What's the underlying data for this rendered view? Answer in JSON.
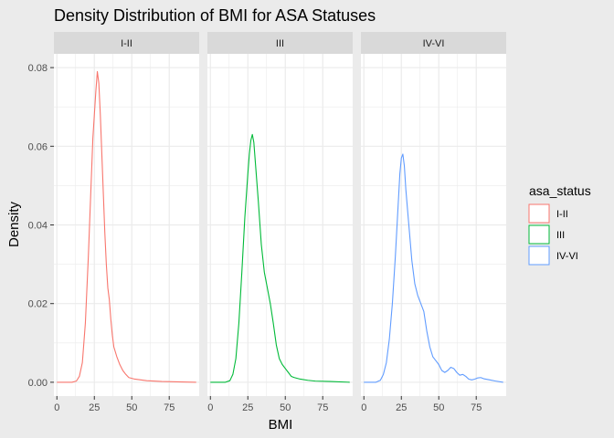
{
  "chart_data": {
    "type": "line",
    "title": "Density Distribution of BMI for ASA Statuses",
    "xlabel": "BMI",
    "ylabel": "Density",
    "xlim": [
      -2,
      95
    ],
    "ylim": [
      -0.0035,
      0.0835
    ],
    "x_ticks": [
      0,
      25,
      50,
      75
    ],
    "y_ticks": [
      0.0,
      0.02,
      0.04,
      0.06,
      0.08
    ],
    "y_tick_labels": [
      "0.00",
      "0.02",
      "0.04",
      "0.06",
      "0.08"
    ],
    "grid": true,
    "legend": {
      "title": "asa_status",
      "placement": "right"
    },
    "facets": [
      "I-II",
      "III",
      "IV-VI"
    ],
    "series": [
      {
        "name": "I-II",
        "color": "#F8766D",
        "points": [
          [
            0,
            0
          ],
          [
            10,
            0
          ],
          [
            13,
            0.0003
          ],
          [
            15,
            0.0015
          ],
          [
            17,
            0.005
          ],
          [
            19,
            0.015
          ],
          [
            21,
            0.032
          ],
          [
            23,
            0.052
          ],
          [
            24,
            0.062
          ],
          [
            25,
            0.068
          ],
          [
            26,
            0.074
          ],
          [
            27,
            0.079
          ],
          [
            28,
            0.076
          ],
          [
            29,
            0.068
          ],
          [
            30,
            0.058
          ],
          [
            31,
            0.048
          ],
          [
            32,
            0.038
          ],
          [
            33,
            0.03
          ],
          [
            34,
            0.024
          ],
          [
            35,
            0.021
          ],
          [
            36,
            0.016
          ],
          [
            37,
            0.012
          ],
          [
            38,
            0.009
          ],
          [
            40,
            0.0065
          ],
          [
            42,
            0.0045
          ],
          [
            44,
            0.003
          ],
          [
            46,
            0.002
          ],
          [
            48,
            0.0012
          ],
          [
            52,
            0.0008
          ],
          [
            56,
            0.0006
          ],
          [
            60,
            0.0004
          ],
          [
            70,
            0.0002
          ],
          [
            80,
            0.0001
          ],
          [
            93,
            0
          ]
        ]
      },
      {
        "name": "III",
        "color": "#00BA38",
        "points": [
          [
            0,
            0
          ],
          [
            10,
            0
          ],
          [
            13,
            0.0004
          ],
          [
            15,
            0.002
          ],
          [
            17,
            0.006
          ],
          [
            19,
            0.015
          ],
          [
            21,
            0.028
          ],
          [
            23,
            0.042
          ],
          [
            25,
            0.053
          ],
          [
            26,
            0.058
          ],
          [
            27,
            0.0615
          ],
          [
            28,
            0.063
          ],
          [
            29,
            0.061
          ],
          [
            30,
            0.056
          ],
          [
            32,
            0.046
          ],
          [
            34,
            0.035
          ],
          [
            36,
            0.028
          ],
          [
            38,
            0.024
          ],
          [
            40,
            0.02
          ],
          [
            42,
            0.015
          ],
          [
            44,
            0.0095
          ],
          [
            46,
            0.006
          ],
          [
            48,
            0.0045
          ],
          [
            50,
            0.0035
          ],
          [
            52,
            0.0025
          ],
          [
            54,
            0.0015
          ],
          [
            56,
            0.0012
          ],
          [
            60,
            0.0008
          ],
          [
            65,
            0.0005
          ],
          [
            70,
            0.0003
          ],
          [
            80,
            0.0002
          ],
          [
            93,
            0
          ]
        ]
      },
      {
        "name": "IV-VI",
        "color": "#619CFF",
        "points": [
          [
            0,
            0
          ],
          [
            8,
            0
          ],
          [
            11,
            0.0005
          ],
          [
            13,
            0.002
          ],
          [
            15,
            0.005
          ],
          [
            17,
            0.011
          ],
          [
            19,
            0.02
          ],
          [
            21,
            0.032
          ],
          [
            23,
            0.046
          ],
          [
            24,
            0.053
          ],
          [
            25,
            0.057
          ],
          [
            26,
            0.058
          ],
          [
            27,
            0.055
          ],
          [
            28,
            0.049
          ],
          [
            30,
            0.04
          ],
          [
            32,
            0.031
          ],
          [
            34,
            0.025
          ],
          [
            36,
            0.022
          ],
          [
            38,
            0.02
          ],
          [
            40,
            0.018
          ],
          [
            42,
            0.013
          ],
          [
            44,
            0.009
          ],
          [
            46,
            0.0065
          ],
          [
            48,
            0.0055
          ],
          [
            50,
            0.0045
          ],
          [
            52,
            0.003
          ],
          [
            54,
            0.0025
          ],
          [
            56,
            0.003
          ],
          [
            58,
            0.0038
          ],
          [
            60,
            0.0035
          ],
          [
            62,
            0.0025
          ],
          [
            64,
            0.0018
          ],
          [
            66,
            0.002
          ],
          [
            68,
            0.0015
          ],
          [
            70,
            0.0008
          ],
          [
            72,
            0.0006
          ],
          [
            74,
            0.0008
          ],
          [
            76,
            0.0011
          ],
          [
            78,
            0.0012
          ],
          [
            80,
            0.0009
          ],
          [
            84,
            0.0006
          ],
          [
            88,
            0.0003
          ],
          [
            93,
            0
          ]
        ]
      }
    ]
  },
  "colors": {
    "background": "#ebebeb",
    "panel": "#ffffff",
    "strip": "#d9d9d9",
    "grid": "#ebebeb"
  }
}
